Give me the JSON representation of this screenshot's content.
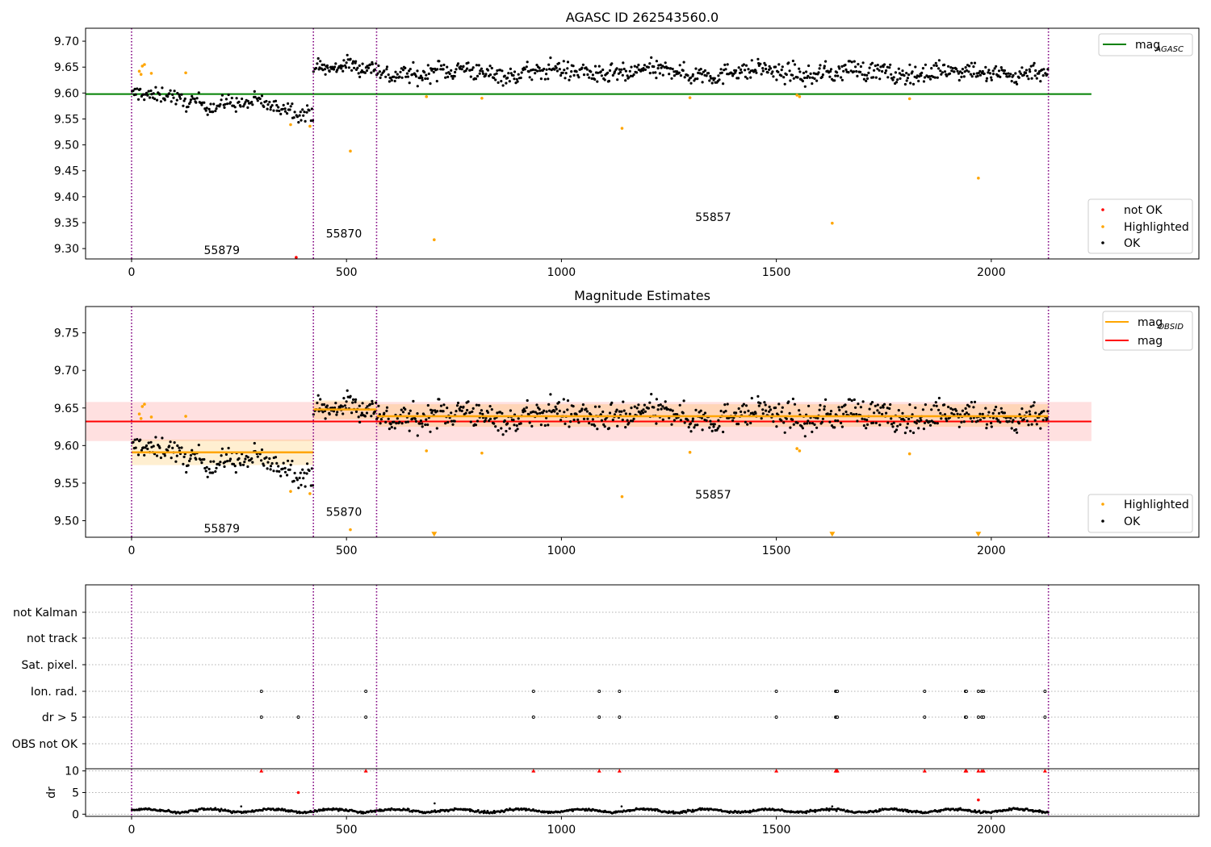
{
  "chart_data": [
    {
      "type": "scatter",
      "title": "AGASC ID 262543560.0",
      "xlabel": "",
      "ylabel": "",
      "xlim": [
        -107,
        2483
      ],
      "ylim": [
        9.28,
        9.725
      ],
      "xticks": [
        0,
        500,
        1000,
        1500,
        2000
      ],
      "xtick_labels": [
        "0",
        "500",
        "1000",
        "1500",
        "2000"
      ],
      "yticks": [
        9.3,
        9.35,
        9.4,
        9.45,
        9.5,
        9.55,
        9.6,
        9.65,
        9.7
      ],
      "ytick_labels": [
        "9.30",
        "9.35",
        "9.40",
        "9.45",
        "9.50",
        "9.55",
        "9.60",
        "9.65",
        "9.70"
      ],
      "grid": false,
      "obsid_boundaries": [
        0,
        423,
        570,
        2133
      ],
      "obsid_labels": [
        {
          "text": "55879",
          "x": 210,
          "y": 9.297
        },
        {
          "text": "55870",
          "x": 494,
          "y": 9.329
        },
        {
          "text": "55857",
          "x": 1353,
          "y": 9.361
        }
      ],
      "lines": [
        {
          "name": "mag_AGASC",
          "legend_main": "mag",
          "legend_sub": "AGASC",
          "color": "#008000",
          "x": [
            -107,
            2233
          ],
          "y": [
            9.598,
            9.598
          ]
        }
      ],
      "segments": [
        {
          "x0": 0,
          "x1": 423,
          "base": 9.595,
          "drift": -0.028,
          "noise": 0.011,
          "n": 175
        },
        {
          "x0": 423,
          "x1": 570,
          "base": 9.652,
          "drift": -0.008,
          "noise": 0.011,
          "n": 75
        },
        {
          "x0": 570,
          "x1": 2133,
          "base": 9.64,
          "drift": 0.0,
          "noise": 0.013,
          "n": 720
        }
      ],
      "series": [
        {
          "name": "not OK",
          "color": "#ff0000",
          "x": [
            383
          ],
          "y": [
            9.283
          ]
        },
        {
          "name": "Highlighted",
          "color": "#ffa500",
          "x": [
            18,
            22,
            25,
            30,
            46,
            126,
            370,
            415,
            509,
            686,
            704,
            815,
            1141,
            1299,
            1548,
            1554,
            1630,
            1810,
            1970
          ],
          "y": [
            9.642,
            9.636,
            9.652,
            9.655,
            9.638,
            9.639,
            9.539,
            9.536,
            9.488,
            9.593,
            9.317,
            9.59,
            9.532,
            9.591,
            9.596,
            9.593,
            9.349,
            9.589,
            9.436
          ]
        },
        {
          "name": "OK",
          "color": "#000000",
          "generated_from": "segments"
        }
      ],
      "legends": [
        {
          "placement": "upper right",
          "entries": [
            "mag_AGASC"
          ]
        },
        {
          "placement": "lower right",
          "entries": [
            "not OK",
            "Highlighted",
            "OK"
          ]
        }
      ]
    },
    {
      "type": "scatter",
      "title": "Magnitude Estimates",
      "xlabel": "",
      "ylabel": "",
      "xlim": [
        -107,
        2483
      ],
      "ylim": [
        9.478,
        9.785
      ],
      "xticks": [
        0,
        500,
        1000,
        1500,
        2000
      ],
      "xtick_labels": [
        "0",
        "500",
        "1000",
        "1500",
        "2000"
      ],
      "yticks": [
        9.5,
        9.55,
        9.6,
        9.65,
        9.7,
        9.75
      ],
      "ytick_labels": [
        "9.50",
        "9.55",
        "9.60",
        "9.65",
        "9.70",
        "9.75"
      ],
      "grid": false,
      "obsid_boundaries": [
        0,
        423,
        570,
        2133
      ],
      "obsid_labels": [
        {
          "text": "55879",
          "x": 210,
          "y": 9.49
        },
        {
          "text": "55870",
          "x": 494,
          "y": 9.512
        },
        {
          "text": "55857",
          "x": 1353,
          "y": 9.535
        }
      ],
      "bands": [
        {
          "color": "#ff0000",
          "alpha": 0.12,
          "x0": -107,
          "x1": 2233,
          "y0": 9.606,
          "y1": 9.658
        },
        {
          "color": "#ffa500",
          "alpha": 0.18,
          "x0": 0,
          "x1": 423,
          "y0": 9.574,
          "y1": 9.608
        },
        {
          "color": "#ffa500",
          "alpha": 0.18,
          "x0": 423,
          "x1": 570,
          "y0": 9.635,
          "y1": 9.66
        },
        {
          "color": "#ffa500",
          "alpha": 0.18,
          "x0": 570,
          "x1": 2133,
          "y0": 9.625,
          "y1": 9.655
        }
      ],
      "lines": [
        {
          "name": "mag_OBSID",
          "legend_main": "mag",
          "legend_sub": "OBSID",
          "color": "#ffa500",
          "segments": [
            [
              0,
              423,
              9.591
            ],
            [
              423,
              570,
              9.648
            ],
            [
              570,
              2133,
              9.639
            ]
          ]
        },
        {
          "name": "mag",
          "legend_main": "mag",
          "legend_sub": "",
          "color": "#ff0000",
          "x": [
            -107,
            2233
          ],
          "y": [
            9.632,
            9.632
          ]
        }
      ],
      "segments": [
        {
          "x0": 0,
          "x1": 423,
          "base": 9.595,
          "drift": -0.028,
          "noise": 0.011,
          "n": 175
        },
        {
          "x0": 423,
          "x1": 570,
          "base": 9.652,
          "drift": -0.008,
          "noise": 0.011,
          "n": 75
        },
        {
          "x0": 570,
          "x1": 2133,
          "base": 9.64,
          "drift": 0.0,
          "noise": 0.013,
          "n": 720
        }
      ],
      "series": [
        {
          "name": "Highlighted",
          "color": "#ffa500",
          "x": [
            18,
            22,
            25,
            30,
            46,
            126,
            370,
            415,
            509,
            686,
            815,
            1141,
            1299,
            1548,
            1554,
            1810
          ],
          "y": [
            9.642,
            9.636,
            9.652,
            9.655,
            9.638,
            9.639,
            9.539,
            9.536,
            9.488,
            9.593,
            9.59,
            9.532,
            9.591,
            9.596,
            9.593,
            9.589
          ]
        },
        {
          "name": "Highlighted (below axis)",
          "color": "#ffa500",
          "marker": "triangle-down",
          "x": [
            704,
            1630,
            1970
          ],
          "y": [
            9.482,
            9.482,
            9.482
          ]
        },
        {
          "name": "OK",
          "color": "#000000",
          "generated_from": "segments"
        }
      ],
      "legends": [
        {
          "placement": "upper right",
          "entries": [
            "mag_OBSID",
            "mag"
          ]
        },
        {
          "placement": "lower right",
          "entries": [
            "Highlighted",
            "OK"
          ]
        }
      ]
    },
    {
      "type": "scatter",
      "title": "",
      "xlim": [
        -107,
        2483
      ],
      "obsid_boundaries": [
        0,
        423,
        570,
        2133
      ],
      "categories": [
        "not Kalman",
        "not track",
        "Sat. pixel.",
        "Ion. rad.",
        "dr > 5",
        "OBS not OK"
      ],
      "flag_events": {
        "Ion. rad.": [
          302,
          545,
          935,
          1088,
          1135,
          1500,
          1638,
          1640,
          1642,
          1845,
          1940,
          1942,
          1970,
          1978,
          1982,
          2125
        ],
        "dr > 5": [
          302,
          388,
          545,
          935,
          1088,
          1135,
          1500,
          1638,
          1640,
          1642,
          1845,
          1940,
          1942,
          1970,
          1978,
          1982,
          2125
        ]
      },
      "grid": "horizontal dotted"
    },
    {
      "type": "scatter",
      "title": "",
      "xlabel": "",
      "ylabel": "dr",
      "xlim": [
        -107,
        2483
      ],
      "ylim": [
        -0.5,
        10.5
      ],
      "xticks": [
        0,
        500,
        1000,
        1500,
        2000
      ],
      "xtick_labels": [
        "0",
        "500",
        "1000",
        "1500",
        "2000"
      ],
      "yticks": [
        0,
        5,
        10
      ],
      "ytick_labels": [
        "0",
        "5",
        "10"
      ],
      "grid": "horizontal dotted",
      "obsid_boundaries": [
        0,
        423,
        570,
        2133
      ],
      "series": [
        {
          "name": "dr clipped at 10",
          "color": "#ff0000",
          "marker": "triangle-up",
          "x": [
            302,
            545,
            935,
            1088,
            1135,
            1500,
            1638,
            1640,
            1642,
            1845,
            1940,
            1942,
            1970,
            1978,
            1982,
            2125
          ],
          "y": [
            10,
            10,
            10,
            10,
            10,
            10,
            10,
            10,
            10,
            10,
            10,
            10,
            10,
            10,
            10,
            10
          ]
        },
        {
          "name": "dr high",
          "color": "#ff0000",
          "x": [
            388,
            1970
          ],
          "y": [
            5.0,
            3.3
          ]
        },
        {
          "name": "dr",
          "color": "#000000",
          "generated_from": "x-range",
          "x_range": [
            0,
            2133
          ],
          "typical": 0.8,
          "n": 900,
          "extra_x": [
            255,
            705,
            1140,
            1630
          ],
          "extra_y": [
            1.8,
            2.5,
            1.8,
            1.8
          ]
        }
      ]
    }
  ]
}
